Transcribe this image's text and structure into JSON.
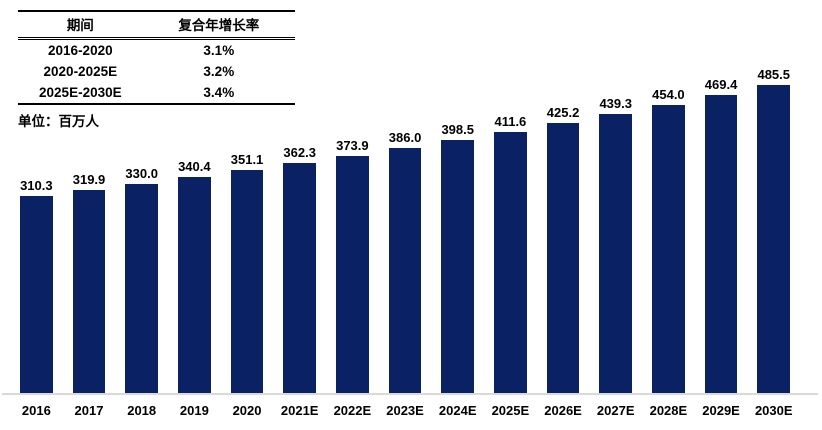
{
  "cagr_table": {
    "headers": [
      "期间",
      "复合年增长率"
    ],
    "rows": [
      [
        "2016-2020",
        "3.1%"
      ],
      [
        "2020-2025E",
        "3.2%"
      ],
      [
        "2025E-2030E",
        "3.4%"
      ]
    ]
  },
  "unit_label": "单位：百万人",
  "colors": {
    "bar": "#0a2264",
    "axis_line": "#d9d9d9",
    "text": "#000000"
  },
  "chart_data": {
    "type": "bar",
    "categories": [
      "2016",
      "2017",
      "2018",
      "2019",
      "2020",
      "2021E",
      "2022E",
      "2023E",
      "2024E",
      "2025E",
      "2026E",
      "2027E",
      "2028E",
      "2029E",
      "2030E"
    ],
    "values": [
      310.3,
      319.9,
      330.0,
      340.4,
      351.1,
      362.3,
      373.9,
      386.0,
      398.5,
      411.6,
      425.2,
      439.3,
      454.0,
      469.4,
      485.5
    ],
    "title": "",
    "xlabel": "",
    "ylabel": "单位：百万人",
    "ylim": [
      0,
      500
    ],
    "value_labels_decimals": 1,
    "grid": false,
    "legend": false,
    "bar_color": "#0a2264"
  }
}
